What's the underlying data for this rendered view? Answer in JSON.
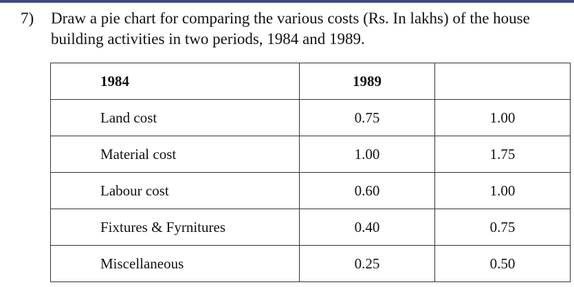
{
  "question": {
    "number": "7)",
    "text": "Draw a pie chart for comparing the various costs (Rs. In lakhs) of the house building activities in two periods, 1984 and 1989."
  },
  "table": {
    "headers": [
      "1984",
      "1989",
      ""
    ],
    "rows": [
      [
        "Land cost",
        "0.75",
        "1.00"
      ],
      [
        "Material cost",
        "1.00",
        "1.75"
      ],
      [
        "Labour cost",
        "0.60",
        "1.00"
      ],
      [
        "Fixtures & Fyrnitures",
        "0.40",
        "0.75"
      ],
      [
        "Miscellaneous",
        "0.25",
        "0.50"
      ]
    ]
  }
}
